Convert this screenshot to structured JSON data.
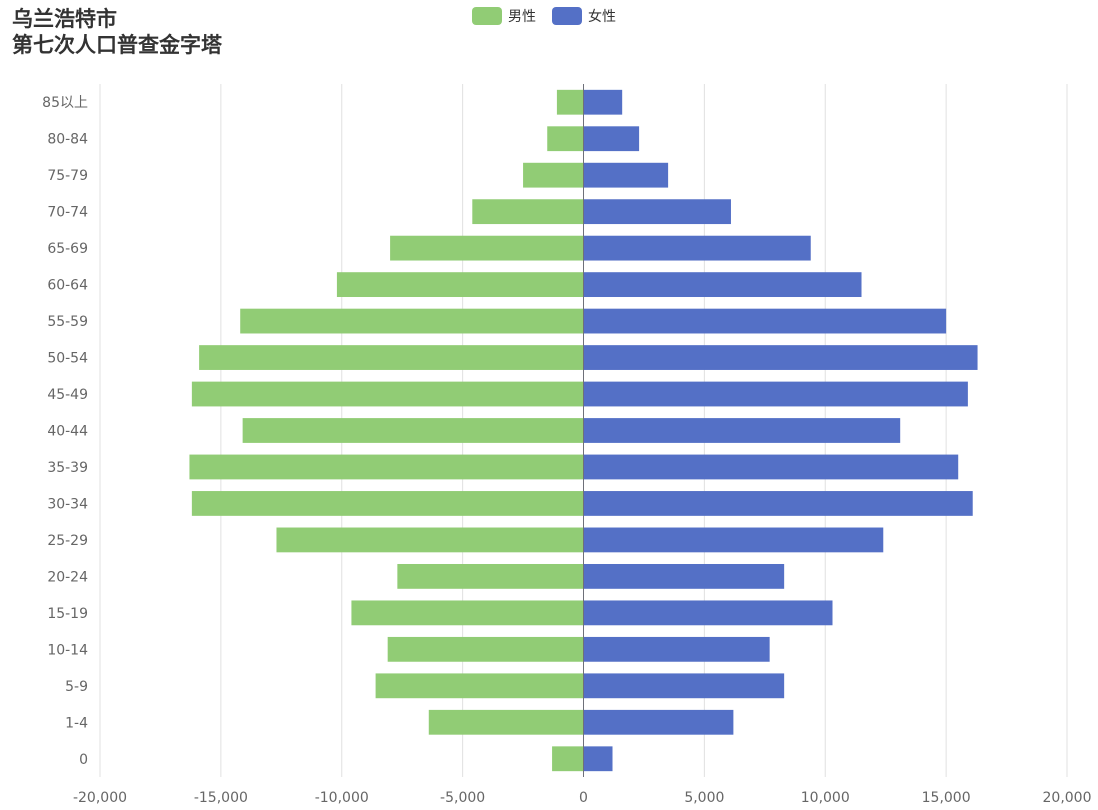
{
  "title": {
    "line1": "乌兰浩特市",
    "line2": "第七次人口普查金字塔"
  },
  "legend": [
    {
      "name": "男性",
      "color": "#91cc75"
    },
    {
      "name": "女性",
      "color": "#5470c6"
    }
  ],
  "chart_data": {
    "type": "bar",
    "orientation": "horizontal",
    "title": "乌兰浩特市 第七次人口普查金字塔",
    "categories": [
      "0",
      "1-4",
      "5-9",
      "10-14",
      "15-19",
      "20-24",
      "25-29",
      "30-34",
      "35-39",
      "40-44",
      "45-49",
      "50-54",
      "55-59",
      "60-64",
      "65-69",
      "70-74",
      "75-79",
      "80-84",
      "85以上"
    ],
    "series": [
      {
        "name": "男性",
        "color": "#91cc75",
        "values": [
          -1300,
          -6400,
          -8600,
          -8100,
          -9600,
          -7700,
          -12700,
          -16200,
          -16300,
          -14100,
          -16200,
          -15900,
          -14200,
          -10200,
          -8000,
          -4600,
          -2500,
          -1500,
          -1100
        ]
      },
      {
        "name": "女性",
        "color": "#5470c6",
        "values": [
          1200,
          6200,
          8300,
          7700,
          10300,
          8300,
          12400,
          16100,
          15500,
          13100,
          15900,
          16300,
          15000,
          11500,
          9400,
          6100,
          3500,
          2300,
          1600
        ]
      }
    ],
    "xlim": [
      -20000,
      20000
    ],
    "xticks": [
      "-20,000",
      "-15,000",
      "-10,000",
      "-5,000",
      "0",
      "5,000",
      "10,000",
      "15,000",
      "20,000"
    ],
    "grid": true,
    "legend_position": "top-center"
  }
}
